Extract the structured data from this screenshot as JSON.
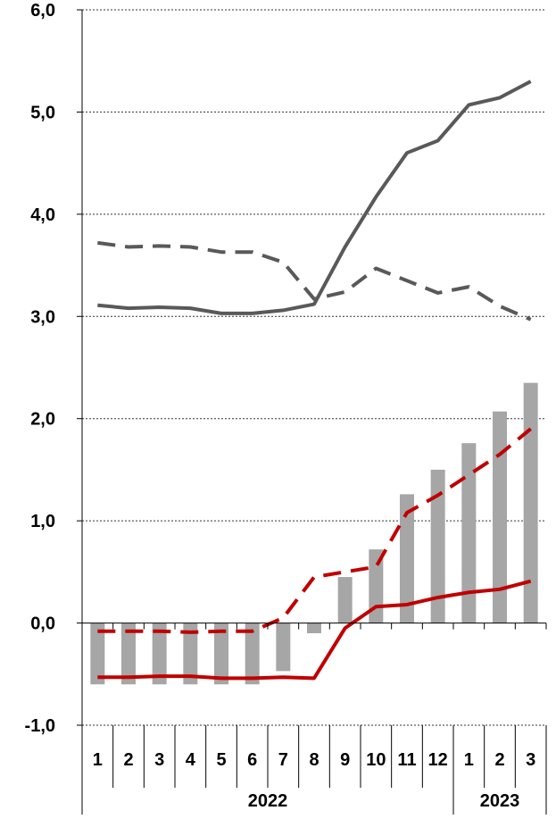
{
  "chart_data": {
    "type": "bar",
    "title": "",
    "xlabel": "",
    "ylabel": "",
    "ylim": [
      -1.0,
      6.0
    ],
    "yticks": [
      "-1,0",
      "0,0",
      "1,0",
      "2,0",
      "3,0",
      "4,0",
      "5,0",
      "6,0"
    ],
    "grid": true,
    "categories": [
      "1",
      "2",
      "3",
      "4",
      "5",
      "6",
      "7",
      "8",
      "9",
      "10",
      "11",
      "12",
      "1",
      "2",
      "3"
    ],
    "groups": [
      {
        "label": "2022",
        "count": 12
      },
      {
        "label": "2023",
        "count": 3
      }
    ],
    "series": [
      {
        "kind": "bar",
        "color": "#A6A6A6",
        "values": [
          -0.6,
          -0.6,
          -0.6,
          -0.6,
          -0.6,
          -0.6,
          -0.47,
          -0.1,
          0.45,
          0.72,
          1.26,
          1.5,
          1.76,
          2.07,
          2.35
        ]
      },
      {
        "kind": "line",
        "style": "solid",
        "color": "#595959",
        "values": [
          3.11,
          3.08,
          3.09,
          3.08,
          3.03,
          3.03,
          3.06,
          3.12,
          3.68,
          4.17,
          4.6,
          4.72,
          5.07,
          5.14,
          5.3
        ]
      },
      {
        "kind": "line",
        "style": "dashed",
        "color": "#595959",
        "values": [
          3.72,
          3.68,
          3.69,
          3.68,
          3.63,
          3.63,
          3.53,
          3.17,
          3.24,
          3.47,
          3.35,
          3.23,
          3.29,
          3.1,
          2.97
        ]
      },
      {
        "kind": "line",
        "style": "solid",
        "color": "#C00000",
        "values": [
          -0.53,
          -0.53,
          -0.52,
          -0.52,
          -0.54,
          -0.54,
          -0.53,
          -0.54,
          -0.05,
          0.16,
          0.18,
          0.25,
          0.3,
          0.33,
          0.41
        ]
      },
      {
        "kind": "line",
        "style": "dashed",
        "color": "#C00000",
        "values": [
          -0.08,
          -0.08,
          -0.08,
          -0.09,
          -0.08,
          -0.08,
          0.05,
          0.45,
          0.5,
          0.55,
          1.08,
          1.25,
          1.45,
          1.65,
          1.9
        ]
      }
    ]
  }
}
